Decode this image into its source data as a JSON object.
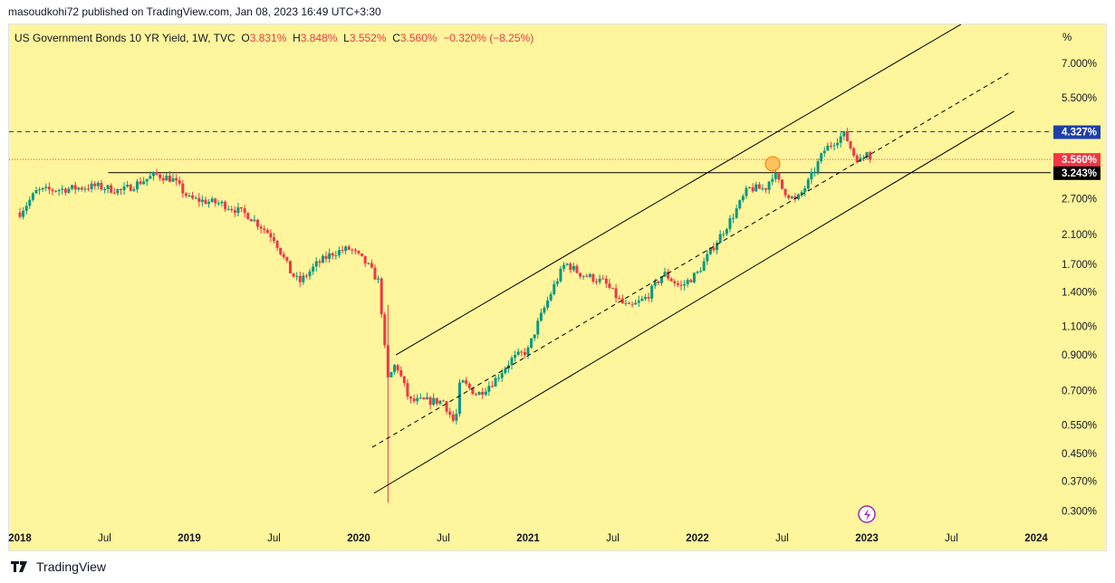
{
  "header": {
    "published": "masoudkohi72 published on TradingView.com, Jan 08, 2023 16:49 UTC+3:30"
  },
  "legend": {
    "symbol": "US Government Bonds 10 YR Yield, 1W, TVC",
    "o_label": "O",
    "o": "3.831%",
    "h_label": "H",
    "h": "3.848%",
    "l_label": "L",
    "l": "3.552%",
    "c_label": "C",
    "c": "3.560%",
    "change": "−0.320% (−8.25%)"
  },
  "footer": {
    "brand": "TradingView"
  },
  "colors": {
    "background": "#fff59d",
    "up": "#089981",
    "down": "#f23645",
    "blue_line": "#1e3fa8"
  },
  "chart_data": {
    "type": "candlestick",
    "title": "US Government Bonds 10 YR Yield, 1W, TVC",
    "yscale": "log",
    "ylabel": "%",
    "ylim": [
      0.28,
      9.5
    ],
    "xlim": [
      2018.0,
      2024.4
    ],
    "y_ticks": [
      "7.000%",
      "5.500%",
      "2.700%",
      "2.100%",
      "1.700%",
      "1.400%",
      "1.100%",
      "0.900%",
      "0.700%",
      "0.550%",
      "0.450%",
      "0.370%",
      "0.300%"
    ],
    "y_tick_values": [
      7,
      5.5,
      2.7,
      2.1,
      1.7,
      1.4,
      1.1,
      0.9,
      0.7,
      0.55,
      0.45,
      0.37,
      0.3
    ],
    "x_ticks": [
      {
        "label": "2018",
        "t": 2018.0,
        "bold": true
      },
      {
        "label": "Jul",
        "t": 2018.5
      },
      {
        "label": "2019",
        "t": 2019.0,
        "bold": true
      },
      {
        "label": "Jul",
        "t": 2019.5
      },
      {
        "label": "2020",
        "t": 2020.0,
        "bold": true
      },
      {
        "label": "Jul",
        "t": 2020.5
      },
      {
        "label": "2021",
        "t": 2021.0,
        "bold": true
      },
      {
        "label": "Jul",
        "t": 2021.5
      },
      {
        "label": "2022",
        "t": 2022.0,
        "bold": true
      },
      {
        "label": "Jul",
        "t": 2022.5
      },
      {
        "label": "2023",
        "t": 2023.0,
        "bold": true
      },
      {
        "label": "Jul",
        "t": 2023.5
      },
      {
        "label": "2024",
        "t": 2024.0,
        "bold": true
      }
    ],
    "axis_unit": "%",
    "price_path": [
      [
        2018.0,
        2.45
      ],
      [
        2018.1,
        2.85
      ],
      [
        2018.3,
        2.9
      ],
      [
        2018.45,
        2.95
      ],
      [
        2018.6,
        2.85
      ],
      [
        2018.8,
        3.2
      ],
      [
        2018.9,
        3.1
      ],
      [
        2019.0,
        2.7
      ],
      [
        2019.2,
        2.6
      ],
      [
        2019.35,
        2.4
      ],
      [
        2019.5,
        2.05
      ],
      [
        2019.6,
        1.6
      ],
      [
        2019.65,
        1.5
      ],
      [
        2019.75,
        1.7
      ],
      [
        2019.85,
        1.85
      ],
      [
        2019.95,
        1.9
      ],
      [
        2020.05,
        1.7
      ],
      [
        2020.12,
        1.5
      ],
      [
        2020.17,
        0.75
      ],
      [
        2020.22,
        0.85
      ],
      [
        2020.3,
        0.65
      ],
      [
        2020.5,
        0.65
      ],
      [
        2020.57,
        0.55
      ],
      [
        2020.6,
        0.75
      ],
      [
        2020.7,
        0.68
      ],
      [
        2020.8,
        0.75
      ],
      [
        2020.9,
        0.87
      ],
      [
        2021.0,
        0.93
      ],
      [
        2021.05,
        1.1
      ],
      [
        2021.15,
        1.45
      ],
      [
        2021.22,
        1.72
      ],
      [
        2021.3,
        1.6
      ],
      [
        2021.45,
        1.5
      ],
      [
        2021.55,
        1.3
      ],
      [
        2021.6,
        1.25
      ],
      [
        2021.7,
        1.35
      ],
      [
        2021.8,
        1.6
      ],
      [
        2021.9,
        1.45
      ],
      [
        2022.0,
        1.6
      ],
      [
        2022.1,
        1.95
      ],
      [
        2022.2,
        2.35
      ],
      [
        2022.3,
        2.9
      ],
      [
        2022.4,
        2.9
      ],
      [
        2022.45,
        3.25
      ],
      [
        2022.5,
        2.9
      ],
      [
        2022.58,
        2.65
      ],
      [
        2022.65,
        3.0
      ],
      [
        2022.75,
        3.8
      ],
      [
        2022.82,
        4.1
      ],
      [
        2022.87,
        4.25
      ],
      [
        2022.92,
        3.7
      ],
      [
        2022.97,
        3.5
      ],
      [
        2023.0,
        3.83
      ],
      [
        2023.02,
        3.56
      ]
    ],
    "price_labels": [
      {
        "text": "4.327%",
        "value": 4.327,
        "color": "#1e3fa8"
      },
      {
        "text": "3.560%",
        "value": 3.56,
        "color": "#f23645"
      },
      {
        "text": "3.243%",
        "value": 3.243,
        "color": "#000000"
      }
    ],
    "drawings": [
      {
        "type": "trend",
        "style": "solid",
        "from": [
          2020.22,
          0.9
        ],
        "to": [
          2023.6,
          9.5
        ]
      },
      {
        "type": "trend",
        "style": "dashed",
        "from": [
          2020.08,
          0.47
        ],
        "to": [
          2023.85,
          6.6
        ]
      },
      {
        "type": "trend",
        "style": "solid",
        "from": [
          2020.09,
          0.34
        ],
        "to": [
          2023.87,
          5.0
        ]
      },
      {
        "type": "horizontal",
        "style": "solid",
        "value": 3.243,
        "from_t": 2018.5
      },
      {
        "type": "horizontal",
        "style": "dashed",
        "value": 4.327
      },
      {
        "type": "horizontal",
        "style": "dotted",
        "value": 3.56
      }
    ]
  }
}
